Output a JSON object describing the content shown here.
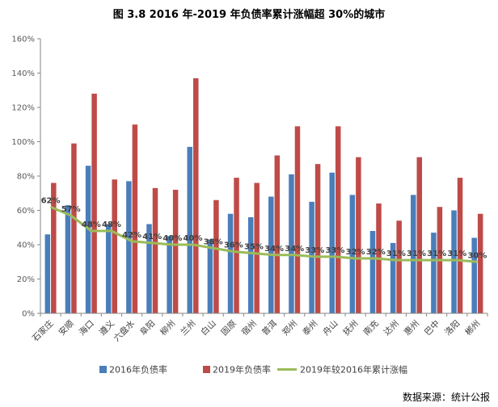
{
  "chart_data": {
    "type": "bar",
    "title": "图 3.8  2016 年-2019 年负债率累计涨幅超 30%的城市",
    "categories": [
      "石家庄",
      "安顺",
      "海口",
      "遵义",
      "六盘水",
      "阜阳",
      "柳州",
      "兰州",
      "白山",
      "固原",
      "宿州",
      "普洱",
      "郑州",
      "泰州",
      "舟山",
      "抚州",
      "南充",
      "达州",
      "惠州",
      "巴中",
      "洛阳",
      "郴州"
    ],
    "series": [
      {
        "name": "2016年负债率",
        "type": "bar",
        "color": "#4a7ebb",
        "values": [
          46,
          63,
          86,
          52,
          77,
          52,
          45,
          97,
          43,
          58,
          56,
          68,
          81,
          65,
          82,
          69,
          48,
          41,
          69,
          47,
          60,
          44
        ]
      },
      {
        "name": "2019年负债率",
        "type": "bar",
        "color": "#be4b48",
        "values": [
          76,
          99,
          128,
          78,
          110,
          73,
          72,
          137,
          66,
          79,
          76,
          92,
          109,
          87,
          109,
          91,
          64,
          54,
          91,
          62,
          79,
          58
        ]
      },
      {
        "name": "2019年较2016年累计涨幅",
        "type": "line",
        "color": "#9bbb59",
        "values": [
          62,
          57,
          48,
          48,
          42,
          41,
          40,
          40,
          38,
          36,
          35,
          34,
          34,
          33,
          33,
          32,
          32,
          31,
          31,
          31,
          31,
          30
        ],
        "labels": [
          "62%",
          "57%",
          "48%",
          "48%",
          "42%",
          "41%",
          "40%",
          "40%",
          "38%",
          "36%",
          "35%",
          "34%",
          "34%",
          "33%",
          "33%",
          "32%",
          "32%",
          "31%",
          "31%",
          "31%",
          "31%",
          "30%"
        ]
      }
    ],
    "ylim": [
      0,
      160
    ],
    "yticks": [
      "0%",
      "20%",
      "40%",
      "60%",
      "80%",
      "100%",
      "120%",
      "140%",
      "160%"
    ],
    "xlabel": "",
    "ylabel": "",
    "legend": "bottom",
    "grid": false
  },
  "source": "数据来源：统计公报"
}
